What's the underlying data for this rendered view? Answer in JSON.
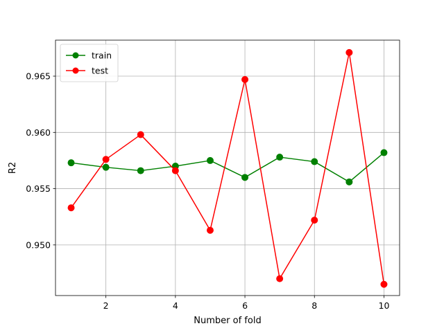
{
  "chart_data": {
    "type": "line",
    "title": "",
    "xlabel": "Number of fold",
    "ylabel": "R2",
    "x": [
      1,
      2,
      3,
      4,
      5,
      6,
      7,
      8,
      9,
      10
    ],
    "xlim": [
      0.55,
      10.45
    ],
    "ylim": [
      0.9455,
      0.9682
    ],
    "xticks": [
      2,
      4,
      6,
      8,
      10
    ],
    "xtick_labels": [
      "2",
      "4",
      "6",
      "8",
      "10"
    ],
    "yticks": [
      0.95,
      0.955,
      0.96,
      0.965
    ],
    "ytick_labels": [
      "0.950",
      "0.955",
      "0.960",
      "0.965"
    ],
    "grid": true,
    "legend_position": "upper left",
    "series": [
      {
        "name": "train",
        "color": "#008000",
        "marker": "circle",
        "values": [
          0.9573,
          0.9569,
          0.9566,
          0.957,
          0.9575,
          0.956,
          0.9578,
          0.9574,
          0.9556,
          0.9582
        ]
      },
      {
        "name": "test",
        "color": "#ff0000",
        "marker": "circle",
        "values": [
          0.9533,
          0.9576,
          0.9598,
          0.9566,
          0.9513,
          0.9647,
          0.947,
          0.9522,
          0.9671,
          0.9465
        ]
      }
    ]
  }
}
